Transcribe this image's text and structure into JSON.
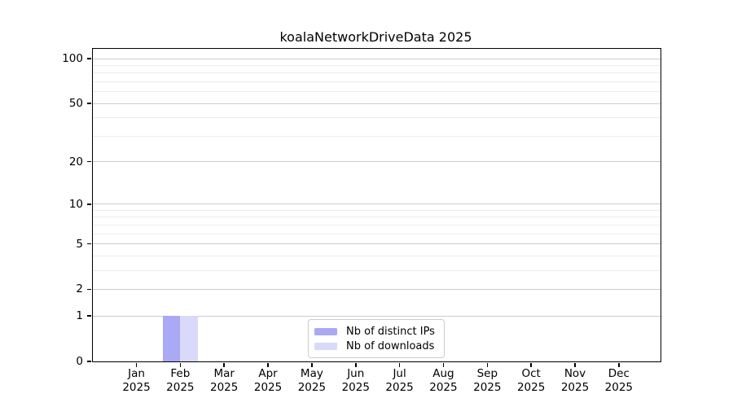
{
  "title": "koalaNetworkDriveData 2025",
  "chart_data": {
    "type": "bar",
    "title": "koalaNetworkDriveData 2025",
    "categories": [
      "Jan",
      "Feb",
      "Mar",
      "Apr",
      "May",
      "Jun",
      "Jul",
      "Aug",
      "Sep",
      "Oct",
      "Nov",
      "Dec"
    ],
    "year_label": "2025",
    "series": [
      {
        "name": "Nb of distinct IPs",
        "color": "#a9a9f5",
        "values": [
          0,
          1,
          0,
          0,
          0,
          0,
          0,
          0,
          0,
          0,
          0,
          0
        ]
      },
      {
        "name": "Nb of downloads",
        "color": "#d9d9f9",
        "values": [
          0,
          1,
          0,
          0,
          0,
          0,
          0,
          0,
          0,
          0,
          0,
          0
        ]
      }
    ],
    "xlabel": "",
    "ylabel": "",
    "yscale": "log1p",
    "ylim": [
      0,
      117
    ],
    "yticks": [
      0,
      1,
      2,
      5,
      10,
      20,
      50,
      100
    ],
    "minor_yticks": [
      3,
      4,
      6,
      7,
      8,
      9,
      30,
      40,
      60,
      70,
      80,
      90
    ],
    "grid": "horizontal-on",
    "legend_position": "lower-center-inside"
  },
  "colors": {
    "distinct_ips": "#a9a9f5",
    "downloads": "#d9d9f9",
    "major_grid": "#cccccc",
    "minor_grid": "#ececec",
    "axis": "#000000"
  }
}
